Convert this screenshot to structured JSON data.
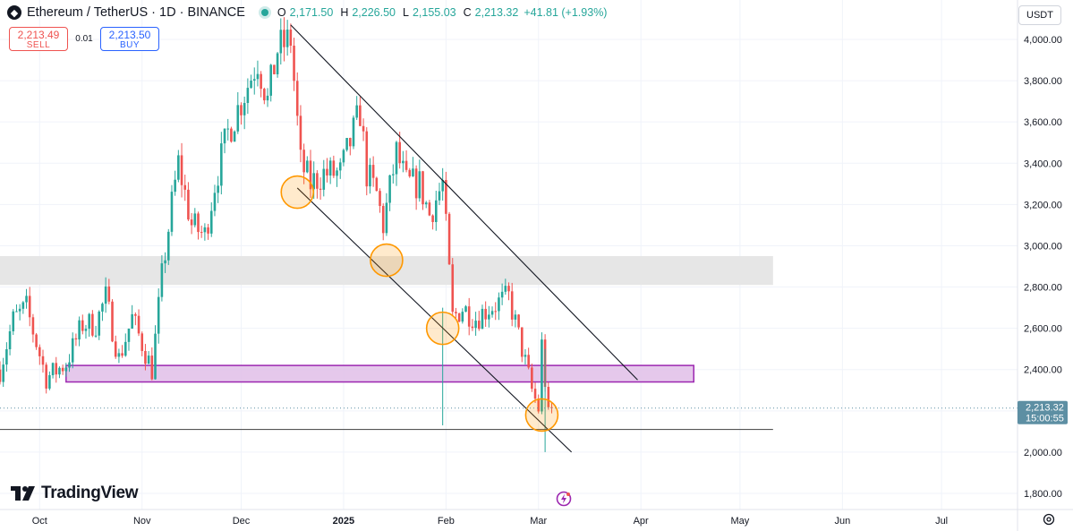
{
  "header": {
    "symbol": "Ethereum / TetherUS · 1D · BINANCE",
    "o_label": "O",
    "o": "2,171.50",
    "h_label": "H",
    "h": "2,226.50",
    "l_label": "L",
    "l": "2,155.03",
    "c_label": "C",
    "c": "2,213.32",
    "change": "+41.81 (+1.93%)"
  },
  "trade": {
    "sell_price": "2,213.49",
    "sell_label": "SELL",
    "spread": "0.01",
    "buy_price": "2,213.50",
    "buy_label": "BUY"
  },
  "currency": "USDT",
  "brand": "TradingView",
  "colors": {
    "up": "#26a69a",
    "down": "#ef5350",
    "text": "#131722",
    "zone_gray": "#e6e6e6",
    "zone_purple": "#e1bee7",
    "zone_purple_border": "#9c27b0",
    "circle": "#ff9800",
    "last_price_label": "#5d8fa3"
  },
  "chart_data": {
    "type": "candlestick",
    "timeframe": "1D",
    "ylim": [
      1740,
      4090
    ],
    "y_ticks": [
      1800,
      2000,
      2200,
      2400,
      2600,
      2800,
      3000,
      3200,
      3400,
      3600,
      3800,
      4000
    ],
    "y_tick_labels": [
      "1,800.00",
      "2,000.00",
      "2,200.00",
      "2,400.00",
      "2,600.00",
      "2,800.00",
      "3,000.00",
      "3,200.00",
      "3,400.00",
      "3,600.00",
      "3,800.00",
      "4,000.00"
    ],
    "x_start": "2024-09-19",
    "x_end": "2025-07-24",
    "x_ticks": [
      {
        "date": "2024-10-01",
        "label": "Oct"
      },
      {
        "date": "2024-11-01",
        "label": "Nov"
      },
      {
        "date": "2024-12-01",
        "label": "Dec"
      },
      {
        "date": "2025-01-01",
        "label": "2025"
      },
      {
        "date": "2025-02-01",
        "label": "Feb"
      },
      {
        "date": "2025-03-01",
        "label": "Mar"
      },
      {
        "date": "2025-04-01",
        "label": "Apr"
      },
      {
        "date": "2025-05-01",
        "label": "May"
      },
      {
        "date": "2025-06-01",
        "label": "Jun"
      },
      {
        "date": "2025-07-01",
        "label": "Jul"
      }
    ],
    "close_path": [
      [
        "2024-09-19",
        2400
      ],
      [
        "2024-09-23",
        2640
      ],
      [
        "2024-09-27",
        2700
      ],
      [
        "2024-10-03",
        2360
      ],
      [
        "2024-10-09",
        2430
      ],
      [
        "2024-10-14",
        2620
      ],
      [
        "2024-10-18",
        2620
      ],
      [
        "2024-10-21",
        2750
      ],
      [
        "2024-10-25",
        2450
      ],
      [
        "2024-10-29",
        2650
      ],
      [
        "2024-11-04",
        2400
      ],
      [
        "2024-11-07",
        2850
      ],
      [
        "2024-11-10",
        3200
      ],
      [
        "2024-11-12",
        3400
      ],
      [
        "2024-11-16",
        3100
      ],
      [
        "2024-11-20",
        3050
      ],
      [
        "2024-11-23",
        3300
      ],
      [
        "2024-11-27",
        3550
      ],
      [
        "2024-12-01",
        3700
      ],
      [
        "2024-12-06",
        3900
      ],
      [
        "2024-12-09",
        3700
      ],
      [
        "2024-12-12",
        3950
      ],
      [
        "2024-12-16",
        4000
      ],
      [
        "2024-12-19",
        3400
      ],
      [
        "2024-12-22",
        3300
      ],
      [
        "2024-12-26",
        3350
      ],
      [
        "2024-12-31",
        3350
      ],
      [
        "2025-01-06",
        3650
      ],
      [
        "2025-01-08",
        3350
      ],
      [
        "2025-01-11",
        3250
      ],
      [
        "2025-01-13",
        3100
      ],
      [
        "2025-01-17",
        3450
      ],
      [
        "2025-01-20",
        3300
      ],
      [
        "2025-01-24",
        3300
      ],
      [
        "2025-01-27",
        3150
      ],
      [
        "2025-01-31",
        3300
      ],
      [
        "2025-02-03",
        2650
      ],
      [
        "2025-02-06",
        2700
      ],
      [
        "2025-02-10",
        2650
      ],
      [
        "2025-02-14",
        2700
      ],
      [
        "2025-02-20",
        2750
      ],
      [
        "2025-02-24",
        2500
      ],
      [
        "2025-02-27",
        2300
      ],
      [
        "2025-03-01",
        2210
      ],
      [
        "2025-03-02",
        2520
      ],
      [
        "2025-03-04",
        2170
      ],
      [
        "2025-03-05",
        2213.32
      ]
    ],
    "horizontal_lines": [
      {
        "price": 2110
      }
    ],
    "zones": [
      {
        "name": "gray-zone",
        "from": "2024-09-19",
        "to": "2025-05-11",
        "low": 2810,
        "high": 2950
      },
      {
        "name": "purple-zone",
        "from": "2024-10-09",
        "to": "2025-04-17",
        "low": 2340,
        "high": 2420
      }
    ],
    "trendlines": [
      {
        "name": "upper-trendline",
        "from": [
          "2024-12-16",
          4070
        ],
        "to": [
          "2025-03-31",
          2350
        ]
      },
      {
        "name": "lower-trendline",
        "from": [
          "2024-12-18",
          3280
        ],
        "to": [
          "2025-03-11",
          2000
        ]
      }
    ],
    "highlight_circles": [
      {
        "date": "2024-12-18",
        "price": 3260
      },
      {
        "date": "2025-01-14",
        "price": 2930
      },
      {
        "date": "2025-01-31",
        "price": 2600
      },
      {
        "date": "2025-03-02",
        "price": 2180
      }
    ],
    "last_price": {
      "value": 2213.32,
      "label": "2,213.32",
      "countdown": "15:00:55"
    }
  }
}
